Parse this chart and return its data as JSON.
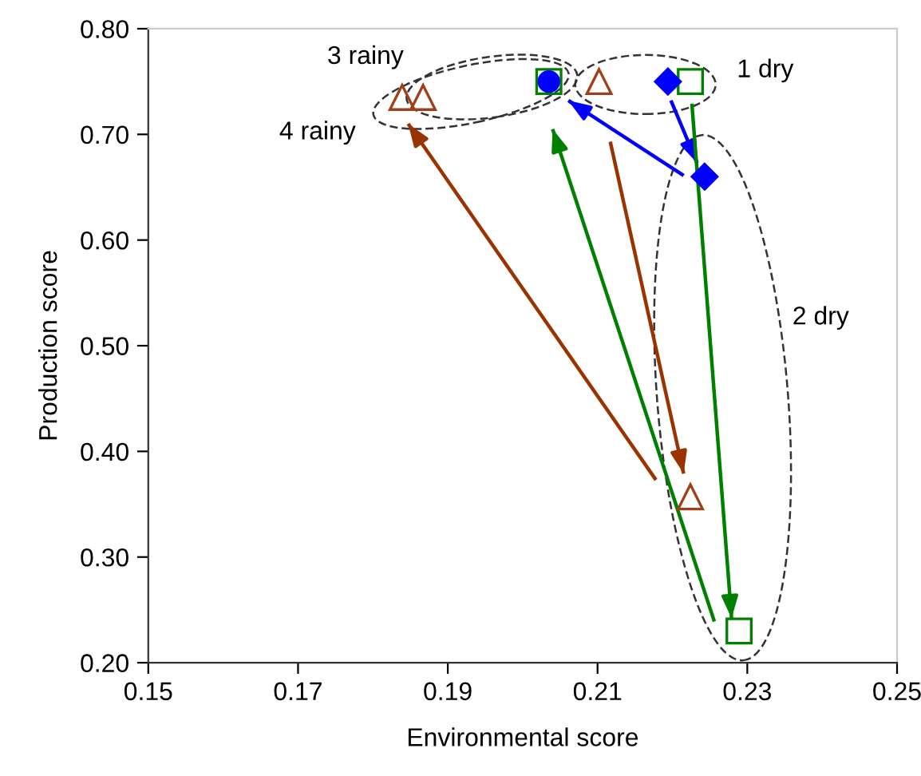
{
  "chart_data": {
    "type": "scatter",
    "xlabel": "Environmental score",
    "ylabel": "Production score",
    "xlim": [
      0.15,
      0.25
    ],
    "ylim": [
      0.2,
      0.8
    ],
    "xticks": [
      0.15,
      0.17,
      0.19,
      0.21,
      0.23,
      0.25
    ],
    "yticks": [
      {
        "value": 0.2,
        "label": "0.20"
      },
      {
        "value": 0.3,
        "label": "0.30"
      },
      {
        "value": 0.4,
        "label": "0.40"
      },
      {
        "value": 0.5,
        "label": "0.50"
      },
      {
        "value": 0.6,
        "label": "0.60"
      },
      {
        "value": 0.7,
        "label": "0.70"
      },
      {
        "value": 0.8,
        "label": "0.80"
      }
    ],
    "grid": false,
    "legend": false,
    "series": [
      {
        "color": "#008000",
        "marker": "square",
        "x": [
          0.2035,
          0.2224,
          0.2289
        ],
        "values": [
          0.75,
          0.75,
          0.23
        ]
      },
      {
        "color": "#0000ff",
        "marker": "diamond",
        "x": [
          0.2194,
          0.2243
        ],
        "values": [
          0.75,
          0.66
        ]
      },
      {
        "color": "#0000ff",
        "marker": "circle",
        "x": [
          0.2035
        ],
        "values": [
          0.75
        ]
      },
      {
        "color": "#a0401a",
        "marker": "triangle",
        "x": [
          0.1839,
          0.1867,
          0.2102,
          0.2224
        ],
        "values": [
          0.735,
          0.735,
          0.75,
          0.357
        ]
      },
      {
        "type": "line",
        "color": "#0000ff",
        "x": [
          0.2198,
          0.2233
        ],
        "values": [
          0.732,
          0.673
        ]
      },
      {
        "type": "line",
        "color": "#0000ff",
        "x": [
          0.2215,
          0.2061
        ],
        "values": [
          0.661,
          0.732
        ]
      },
      {
        "type": "line",
        "color": "#008000",
        "x": [
          0.2226,
          0.2279
        ],
        "values": [
          0.729,
          0.242
        ]
      },
      {
        "type": "line",
        "color": "#008000",
        "x": [
          0.2256,
          0.204
        ],
        "values": [
          0.239,
          0.705
        ]
      },
      {
        "type": "line",
        "color": "#993300",
        "x": [
          0.2117,
          0.2215
        ],
        "values": [
          0.693,
          0.379
        ]
      },
      {
        "type": "line",
        "color": "#993300",
        "x": [
          0.2178,
          0.1847
        ],
        "values": [
          0.373,
          0.71
        ]
      }
    ],
    "annotations": [
      "3 rainy",
      "4 rainy",
      "1 dry",
      "2 dry"
    ]
  }
}
